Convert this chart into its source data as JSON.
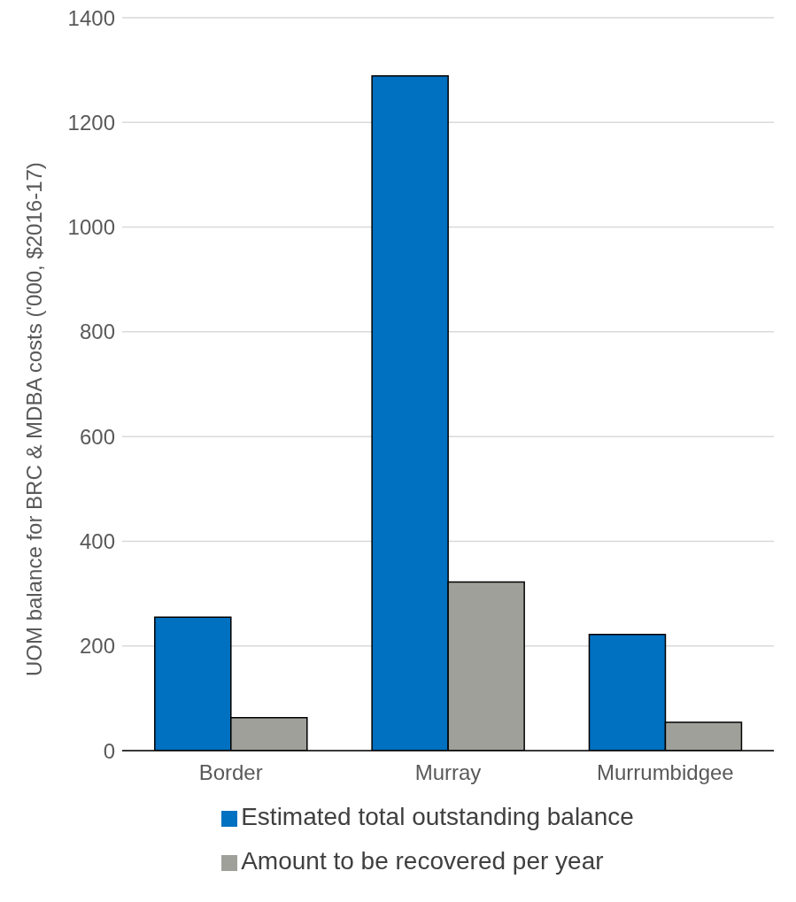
{
  "chart_data": {
    "type": "bar",
    "ylabel": "UOM balance for BRC & MDBA costs ('000, $2016-17)",
    "categories": [
      "Border",
      "Murray",
      "Murrumbidgee"
    ],
    "series": [
      {
        "name": "Estimated total outstanding balance",
        "color": "#0070c0",
        "values": [
          255,
          1289,
          222
        ]
      },
      {
        "name": "Amount to be recovered per year",
        "color": "#a0a09b",
        "values": [
          63,
          322,
          54
        ]
      }
    ],
    "ylim": [
      0,
      1400
    ],
    "yticks": [
      0,
      200,
      400,
      600,
      800,
      1000,
      1200,
      1400
    ],
    "grid": "y",
    "legend": "bottom"
  }
}
